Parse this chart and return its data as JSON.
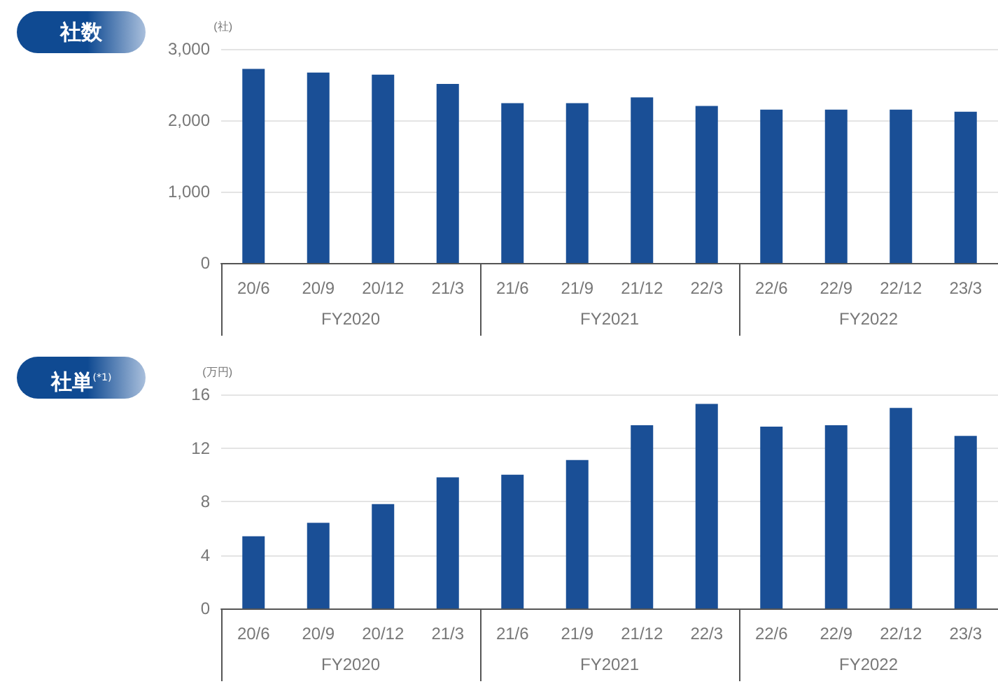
{
  "chart_data": [
    {
      "type": "bar",
      "title": "社数",
      "ylabel": "(社)",
      "categories": [
        "20/6",
        "20/9",
        "20/12",
        "21/3",
        "21/6",
        "21/9",
        "21/12",
        "22/3",
        "22/6",
        "22/9",
        "22/12",
        "23/3"
      ],
      "values": [
        2720,
        2670,
        2640,
        2510,
        2240,
        2240,
        2320,
        2200,
        2150,
        2150,
        2150,
        2120
      ],
      "color": "#1a4f96",
      "ylim": [
        0,
        3000
      ],
      "yticks": [
        0,
        {
          "value": 1000,
          "label": "1,000"
        },
        {
          "value": 2000,
          "label": "2,000"
        },
        {
          "value": 3000,
          "label": "3,000"
        }
      ],
      "grid": "y",
      "annotations": [
        "FY2020",
        "FY2021",
        "FY2022"
      ]
    },
    {
      "type": "bar",
      "title": "社単$^{(*1)}$",
      "ylabel": "(万円)",
      "categories": [
        "20/6",
        "20/9",
        "20/12",
        "21/3",
        "21/6",
        "21/9",
        "21/12",
        "22/3",
        "22/6",
        "22/9",
        "22/12",
        "23/3"
      ],
      "values": [
        5.4,
        6.4,
        7.8,
        9.8,
        10.0,
        11.1,
        13.7,
        15.3,
        13.6,
        13.7,
        15.0,
        12.9
      ],
      "color": "#1a4f96",
      "ylim": [
        0,
        16
      ],
      "yticks": [
        0,
        4,
        8,
        12,
        16
      ],
      "grid": "y",
      "annotations": [
        "FY2020",
        "FY2021",
        "FY2022"
      ]
    }
  ]
}
